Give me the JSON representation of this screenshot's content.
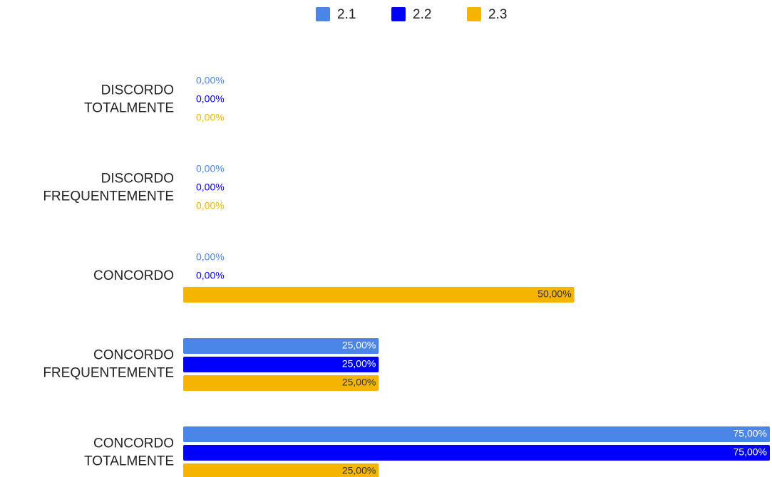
{
  "chart_data": {
    "type": "bar",
    "orientation": "horizontal",
    "categories": [
      "DISCORDO TOTALMENTE",
      "DISCORDO FREQUENTEMENTE",
      "CONCORDO",
      "CONCORDO FREQUENTEMENTE",
      "CONCORDO TOTALMENTE"
    ],
    "series": [
      {
        "name": "2.1",
        "color": "#4a86e8",
        "values": [
          0,
          0,
          0,
          25,
          75
        ],
        "value_labels": [
          "0,00%",
          "0,00%",
          "0,00%",
          "25,00%",
          "75,00%"
        ]
      },
      {
        "name": "2.2",
        "color": "#0000ff",
        "values": [
          0,
          0,
          0,
          25,
          75
        ],
        "value_labels": [
          "0,00%",
          "0,00%",
          "0,00%",
          "25,00%",
          "75,00%"
        ]
      },
      {
        "name": "2.3",
        "color": "#f4b400",
        "values": [
          0,
          0,
          50,
          25,
          25
        ],
        "value_labels": [
          "0,00%",
          "0,00%",
          "50,00%",
          "25,00%",
          "25,00%"
        ]
      }
    ],
    "legend": "top"
  }
}
